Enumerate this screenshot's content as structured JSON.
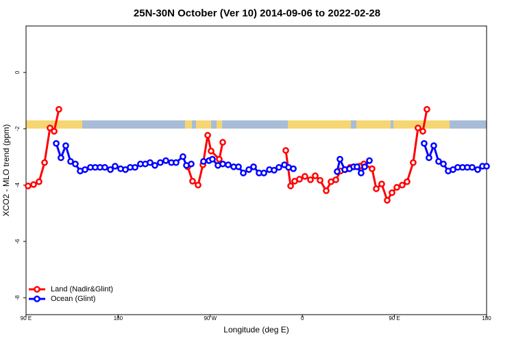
{
  "chart_data": {
    "type": "line",
    "title": "25N-30N October (Ver 10)   2014-09-06 to 2022-02-28",
    "x_label": "Longitude (deg E)",
    "y_label": "XCO2 - MLO trend (ppm)",
    "xlim": [
      90,
      540
    ],
    "xticks": [
      {
        "value": 90,
        "label": "90 E"
      },
      180,
      {
        "value": 270,
        "label": "90 W"
      },
      {
        "value": 360,
        "label": "0"
      },
      {
        "value": 450,
        "label": "90 E"
      },
      {
        "value": 540,
        "label": "180"
      }
    ],
    "ylim": [
      -8.6,
      1.65
    ],
    "yticks": [
      0,
      -2,
      -4,
      -6,
      -8
    ],
    "legend": "bottomleft",
    "series": [
      {
        "name": "Land (Nadir&Glint)",
        "color": "#ff0000",
        "x": [
          92.0,
          97.4,
          102.7,
          108.1,
          113.4,
          117.5,
          122.1,
          null,
          248.0,
          252.7,
          258.1,
          262.8,
          267.5,
          270.8,
          278.8,
          282.2,
          null,
          343.8,
          348.5,
          352.5,
          357.2,
          362.5,
          367.9,
          372.6,
          377.3,
          383.3,
          388.0,
          392.7,
          397.3,
          402.0,
          406.7,
          416.1,
          420.1,
          428.1,
          432.2,
          437.5,
          442.9,
          447.6,
          452.3,
          457.6,
          462.3,
          468.3,
          473.0,
          477.7,
          481.7
        ],
        "values": [
          -4.03,
          -3.98,
          -3.88,
          -3.2,
          -1.97,
          -2.09,
          -1.31,
          null,
          -3.35,
          -3.86,
          -4.0,
          -3.28,
          -2.23,
          -2.79,
          -3.08,
          -2.48,
          null,
          -2.77,
          -4.03,
          -3.86,
          -3.79,
          -3.69,
          -3.81,
          -3.67,
          -3.83,
          -4.2,
          -3.88,
          -3.81,
          -3.5,
          -3.45,
          -3.37,
          -3.33,
          -3.25,
          -3.42,
          -4.13,
          -3.96,
          -4.54,
          -4.27,
          -4.08,
          -4.0,
          -3.88,
          -3.2,
          -1.97,
          -2.09,
          -1.31
        ]
      },
      {
        "name": "Ocean (Glint)",
        "color": "#0000ff",
        "x": [
          119.5,
          124.1,
          128.8,
          133.5,
          138.2,
          142.9,
          147.6,
          152.9,
          157.6,
          162.3,
          167.0,
          172.4,
          177.0,
          182.4,
          187.1,
          191.8,
          196.5,
          201.8,
          206.5,
          211.2,
          215.9,
          221.2,
          226.6,
          232.0,
          236.6,
          243.3,
          246.7,
          251.4,
          null,
          263.4,
          268.8,
          272.1,
          277.5,
          282.2,
          287.5,
          292.9,
          297.6,
          302.3,
          307.7,
          312.3,
          317.7,
          322.4,
          327.8,
          332.4,
          337.1,
          342.5,
          346.5,
          351.2,
          null,
          394.0,
          396.7,
          401.4,
          406.1,
          410.1,
          413.4,
          417.4,
          420.8,
          425.5,
          null,
          479.0,
          483.7,
          488.4,
          493.1,
          497.8,
          502.5,
          507.2,
          511.8,
          516.5,
          521.2,
          525.9,
          531.3,
          536.0,
          540.0
        ],
        "values": [
          -2.52,
          -3.03,
          -2.6,
          -3.16,
          -3.25,
          -3.5,
          -3.45,
          -3.37,
          -3.37,
          -3.37,
          -3.37,
          -3.45,
          -3.33,
          -3.42,
          -3.45,
          -3.37,
          -3.37,
          -3.25,
          -3.25,
          -3.2,
          -3.3,
          -3.2,
          -3.13,
          -3.2,
          -3.2,
          -2.99,
          -3.3,
          -3.25,
          null,
          -3.16,
          -3.13,
          -3.08,
          -3.3,
          -3.25,
          -3.28,
          -3.35,
          -3.35,
          -3.57,
          -3.45,
          -3.35,
          -3.57,
          -3.57,
          -3.45,
          -3.47,
          -3.37,
          -3.28,
          -3.37,
          -3.42,
          null,
          -3.52,
          -3.08,
          -3.45,
          -3.42,
          -3.35,
          -3.35,
          -3.57,
          -3.35,
          -3.13,
          null,
          -2.52,
          -3.03,
          -2.6,
          -3.16,
          -3.25,
          -3.5,
          -3.45,
          -3.37,
          -3.37,
          -3.37,
          -3.37,
          -3.45,
          -3.33,
          -3.33
        ]
      }
    ]
  }
}
